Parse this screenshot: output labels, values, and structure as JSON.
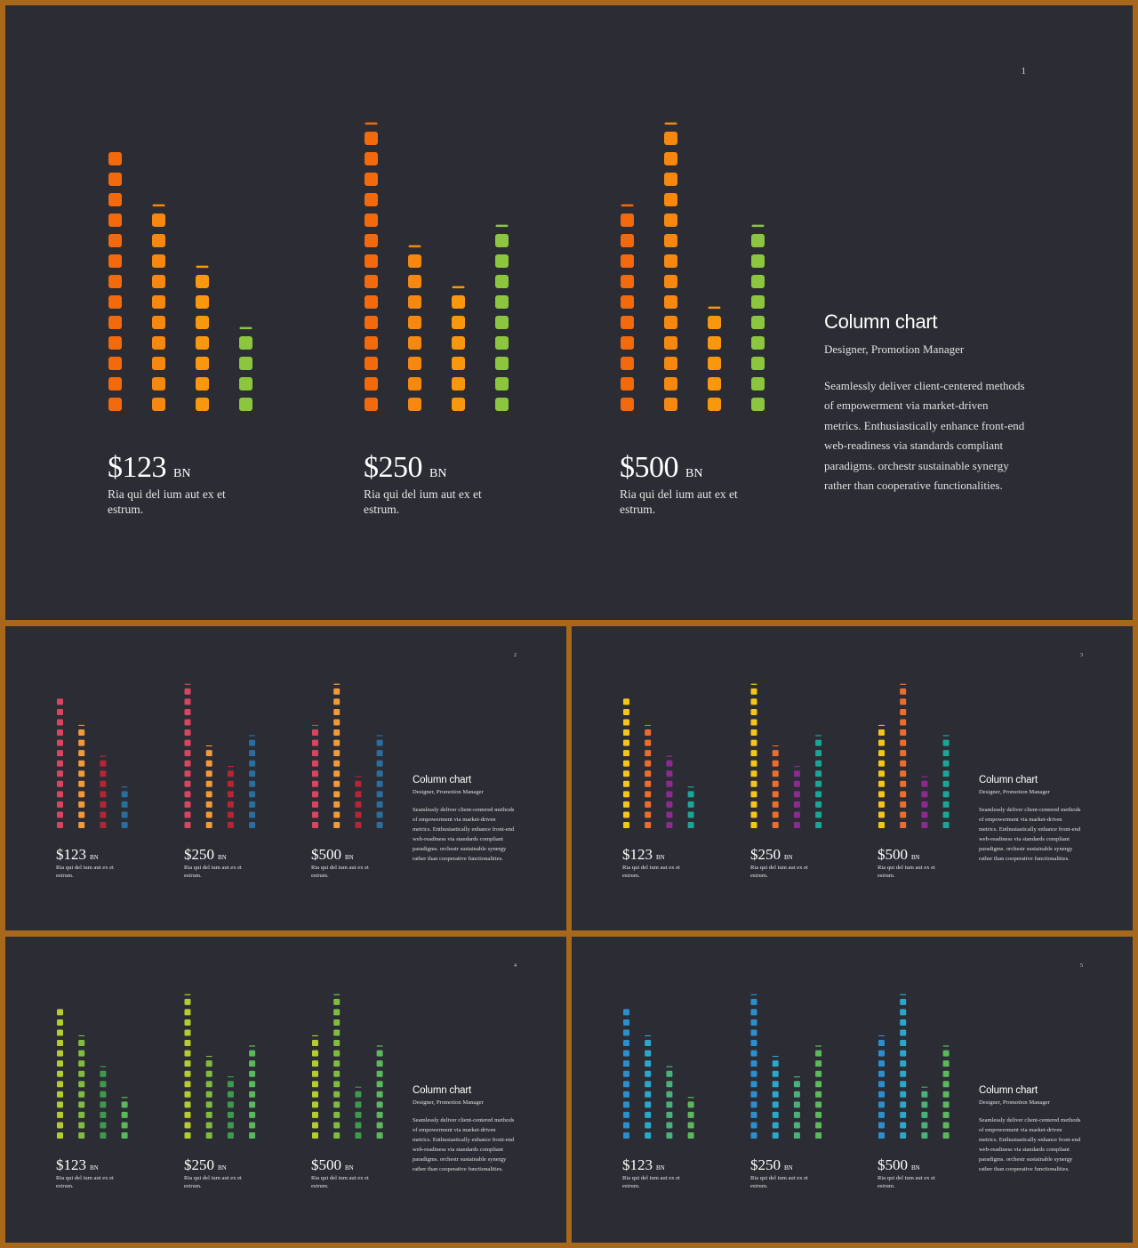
{
  "slides": [
    {
      "number": "1",
      "palette": [
        "#f26a0c",
        "#f6880f",
        "#f9970f",
        "#8cc63f"
      ],
      "chart_data": {
        "type": "bar",
        "groups": [
          {
            "levels": [
              13,
              10,
              7,
              4
            ]
          },
          {
            "levels": [
              14,
              8,
              6,
              9
            ]
          },
          {
            "levels": [
              10,
              14,
              5,
              9
            ]
          }
        ]
      },
      "stats": [
        {
          "value": "$123",
          "unit": "BN",
          "desc": "Ria qui del ium aut ex et estrum."
        },
        {
          "value": "$250",
          "unit": "BN",
          "desc": "Ria qui del ium aut ex et estrum."
        },
        {
          "value": "$500",
          "unit": "BN",
          "desc": "Ria qui del ium aut ex et estrum."
        }
      ],
      "side": {
        "title": "Column chart",
        "subtitle": "Designer, Promotion Manager",
        "body": "Seamlessly deliver client-centered methods of empowerment via market-driven metrics. Enthusiastically enhance front-end web-readiness via standards compliant paradigms. orchestr sustainable synergy rather than cooperative functionalities."
      }
    },
    {
      "number": "2",
      "palette": [
        "#d9455f",
        "#f29a38",
        "#b52535",
        "#2a6e9e"
      ],
      "chart_data": {
        "type": "bar",
        "groups": [
          {
            "levels": [
              13,
              10,
              7,
              4
            ]
          },
          {
            "levels": [
              14,
              8,
              6,
              9
            ]
          },
          {
            "levels": [
              10,
              14,
              5,
              9
            ]
          }
        ]
      },
      "stats": [
        {
          "value": "$123",
          "unit": "BN",
          "desc": "Ria qui del ium aut ex et estrum."
        },
        {
          "value": "$250",
          "unit": "BN",
          "desc": "Ria qui del ium aut ex et estrum."
        },
        {
          "value": "$500",
          "unit": "BN",
          "desc": "Ria qui del ium aut ex et estrum."
        }
      ],
      "side": {
        "title": "Column chart",
        "subtitle": "Designer, Promotion Manager",
        "body": "Seamlessly deliver client-centered methods of empowerment via market-driven metrics. Enthusiastically enhance front-end web-readiness via standards compliant paradigms. orchestr sustainable synergy rather than cooperative functionalities."
      }
    },
    {
      "number": "3",
      "palette": [
        "#f5c518",
        "#ef6d2a",
        "#8b2b8f",
        "#1aa596"
      ],
      "chart_data": {
        "type": "bar",
        "groups": [
          {
            "levels": [
              13,
              10,
              7,
              4
            ]
          },
          {
            "levels": [
              14,
              8,
              6,
              9
            ]
          },
          {
            "levels": [
              10,
              14,
              5,
              9
            ]
          }
        ]
      },
      "stats": [
        {
          "value": "$123",
          "unit": "BN",
          "desc": "Ria qui del ium aut ex et estrum."
        },
        {
          "value": "$250",
          "unit": "BN",
          "desc": "Ria qui del ium aut ex et estrum."
        },
        {
          "value": "$500",
          "unit": "BN",
          "desc": "Ria qui del ium aut ex et estrum."
        }
      ],
      "side": {
        "title": "Column chart",
        "subtitle": "Designer, Promotion Manager",
        "body": "Seamlessly deliver client-centered methods of empowerment via market-driven metrics. Enthusiastically enhance front-end web-readiness via standards compliant paradigms. orchestr sustainable synergy rather than cooperative functionalities."
      }
    },
    {
      "number": "4",
      "palette": [
        "#b5cc2e",
        "#7fbd3e",
        "#3d9a4d",
        "#5cb85c"
      ],
      "chart_data": {
        "type": "bar",
        "groups": [
          {
            "levels": [
              13,
              10,
              7,
              4
            ]
          },
          {
            "levels": [
              14,
              8,
              6,
              9
            ]
          },
          {
            "levels": [
              10,
              14,
              5,
              9
            ]
          }
        ]
      },
      "stats": [
        {
          "value": "$123",
          "unit": "BN",
          "desc": "Ria qui del ium aut ex et estrum."
        },
        {
          "value": "$250",
          "unit": "BN",
          "desc": "Ria qui del ium aut ex et estrum."
        },
        {
          "value": "$500",
          "unit": "BN",
          "desc": "Ria qui del ium aut ex et estrum."
        }
      ],
      "side": {
        "title": "Column chart",
        "subtitle": "Designer, Promotion Manager",
        "body": "Seamlessly deliver client-centered methods of empowerment via market-driven metrics. Enthusiastically enhance front-end web-readiness via standards compliant paradigms. orchestr sustainable synergy rather than cooperative functionalities."
      }
    },
    {
      "number": "5",
      "palette": [
        "#2b8fcf",
        "#2aa8cc",
        "#4bb07a",
        "#5cb85c"
      ],
      "chart_data": {
        "type": "bar",
        "groups": [
          {
            "levels": [
              13,
              10,
              7,
              4
            ]
          },
          {
            "levels": [
              14,
              8,
              6,
              9
            ]
          },
          {
            "levels": [
              10,
              14,
              5,
              9
            ]
          }
        ]
      },
      "stats": [
        {
          "value": "$123",
          "unit": "BN",
          "desc": "Ria qui del ium aut ex et estrum."
        },
        {
          "value": "$250",
          "unit": "BN",
          "desc": "Ria qui del ium aut ex et estrum."
        },
        {
          "value": "$500",
          "unit": "BN",
          "desc": "Ria qui del ium aut ex et estrum."
        }
      ],
      "side": {
        "title": "Column chart",
        "subtitle": "Designer, Promotion Manager",
        "body": "Seamlessly deliver client-centered methods of empowerment via market-driven metrics. Enthusiastically enhance front-end web-readiness via standards compliant paradigms. orchestr sustainable synergy rather than cooperative functionalities."
      }
    }
  ]
}
